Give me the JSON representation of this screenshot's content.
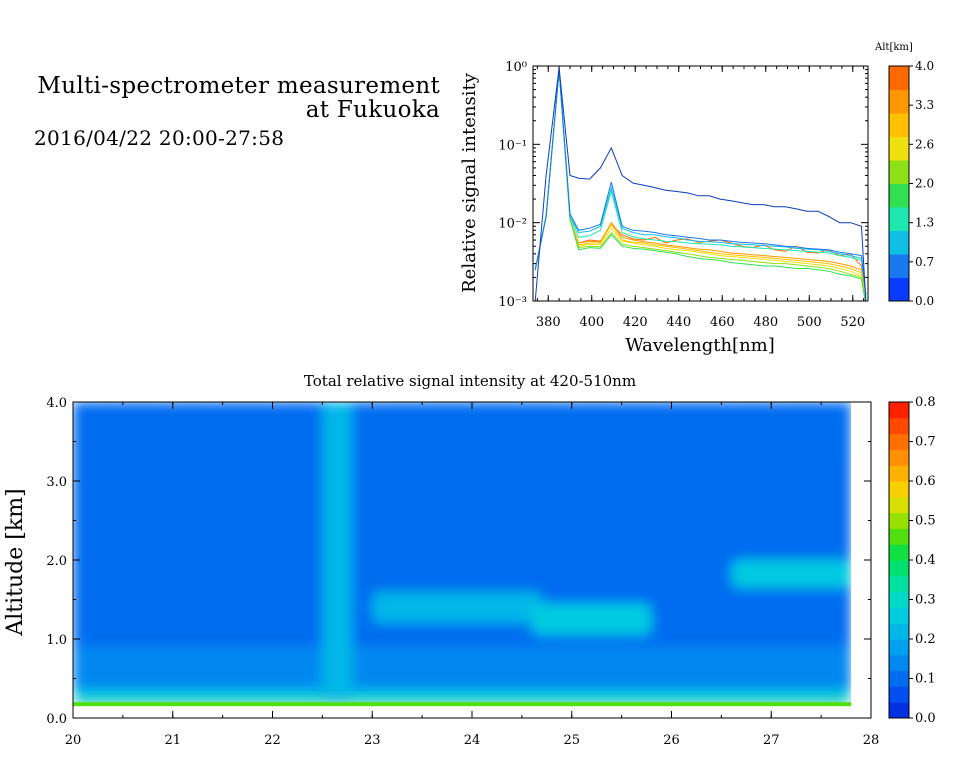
{
  "header": {
    "title_line1": "Multi-spectrometer measurement",
    "title_line2": "at Fukuoka",
    "date_range": "2016/04/22 20:00-27:58"
  },
  "chart_data": [
    {
      "type": "line",
      "xlabel": "Wavelength[nm]",
      "ylabel": "Relative signal intensity",
      "xlim": [
        373,
        527
      ],
      "ylim": [
        0.001,
        1
      ],
      "yscale": "log",
      "x_ticks": [
        380,
        400,
        420,
        440,
        460,
        480,
        500,
        520
      ],
      "y_ticks": [
        "10⁻³",
        "10⁻²",
        "10⁻¹",
        "10⁰"
      ],
      "legend": {
        "title": "Alt[km]",
        "labels": [
          "0.0",
          "0.7",
          "1.3",
          "2.0",
          "2.6",
          "3.3",
          "4.0"
        ],
        "colors": [
          "#0a3cff",
          "#1a78f0",
          "#10bfe6",
          "#1ce8b0",
          "#30e050",
          "#90e018",
          "#f0e010",
          "#ffc000",
          "#ff9800",
          "#ff6a00"
        ]
      },
      "x": [
        374,
        379,
        385,
        390,
        394,
        399,
        404,
        409,
        414,
        419,
        424,
        429,
        434,
        439,
        444,
        449,
        454,
        459,
        464,
        469,
        474,
        479,
        484,
        489,
        494,
        499,
        504,
        509,
        514,
        519,
        524,
        526
      ],
      "series": [
        {
          "color": "#0b3dbd",
          "values": [
            0.001,
            0.04,
            0.95,
            0.04,
            0.037,
            0.036,
            0.05,
            0.09,
            0.04,
            0.032,
            0.03,
            0.028,
            0.026,
            0.025,
            0.024,
            0.022,
            0.022,
            0.02,
            0.019,
            0.018,
            0.017,
            0.017,
            0.016,
            0.016,
            0.015,
            0.014,
            0.014,
            0.012,
            0.01,
            0.01,
            0.009,
            0.001
          ]
        },
        {
          "color": "#1a78f0",
          "values": [
            0.0025,
            0.012,
            0.9,
            0.013,
            0.008,
            0.0085,
            0.0095,
            0.033,
            0.009,
            0.008,
            0.0078,
            0.0075,
            0.007,
            0.0068,
            0.0065,
            0.0063,
            0.006,
            0.006,
            0.0058,
            0.0056,
            0.0055,
            0.0054,
            0.0052,
            0.005,
            0.0049,
            0.0047,
            0.0046,
            0.0045,
            0.0042,
            0.004,
            0.0038,
            0.0012
          ]
        },
        {
          "color": "#10bfe6",
          "values": [
            0.0025,
            0.012,
            0.9,
            0.012,
            0.0075,
            0.0078,
            0.009,
            0.028,
            0.0085,
            0.0075,
            0.007,
            0.007,
            0.0066,
            0.0064,
            0.006,
            0.0058,
            0.0057,
            0.0056,
            0.0054,
            0.0053,
            0.0052,
            0.0051,
            0.005,
            0.0049,
            0.0047,
            0.0046,
            0.0045,
            0.0043,
            0.004,
            0.0038,
            0.0035,
            0.0012
          ]
        },
        {
          "color": "#1ce8b0",
          "values": [
            0.0025,
            0.012,
            0.9,
            0.012,
            0.0065,
            0.0068,
            0.008,
            0.025,
            0.0075,
            0.0066,
            0.0062,
            0.006,
            0.0058,
            0.0057,
            0.0055,
            0.0054,
            0.0053,
            0.0052,
            0.005,
            0.0049,
            0.0048,
            0.0047,
            0.0046,
            0.0045,
            0.0044,
            0.0043,
            0.0042,
            0.0041,
            0.0038,
            0.0036,
            0.0033,
            0.0012
          ]
        },
        {
          "color": "#30e050",
          "values": [
            0.0025,
            0.012,
            0.9,
            0.011,
            0.0045,
            0.0048,
            0.0047,
            0.007,
            0.005,
            0.0047,
            0.0046,
            0.0044,
            0.0042,
            0.004,
            0.0037,
            0.0035,
            0.0034,
            0.0033,
            0.0031,
            0.003,
            0.0029,
            0.0028,
            0.0028,
            0.0027,
            0.0026,
            0.0026,
            0.0025,
            0.0024,
            0.0022,
            0.0021,
            0.0019,
            0.0009
          ]
        },
        {
          "color": "#90e018",
          "values": [
            0.0025,
            0.012,
            0.9,
            0.011,
            0.0048,
            0.005,
            0.0049,
            0.0075,
            0.0053,
            0.005,
            0.0048,
            0.0046,
            0.0044,
            0.0042,
            0.004,
            0.0038,
            0.0036,
            0.0035,
            0.0034,
            0.0033,
            0.0032,
            0.0031,
            0.003,
            0.003,
            0.0029,
            0.0028,
            0.0027,
            0.0026,
            0.0024,
            0.0022,
            0.002,
            0.0009
          ]
        },
        {
          "color": "#f0e010",
          "values": [
            0.0025,
            0.012,
            0.9,
            0.011,
            0.005,
            0.0053,
            0.0052,
            0.0085,
            0.0058,
            0.0055,
            0.0052,
            0.005,
            0.0047,
            0.0045,
            0.0044,
            0.0042,
            0.004,
            0.0038,
            0.0037,
            0.0036,
            0.0035,
            0.0034,
            0.0033,
            0.0032,
            0.0031,
            0.003,
            0.0029,
            0.0028,
            0.0026,
            0.0024,
            0.0021,
            0.001
          ]
        },
        {
          "color": "#ffc000",
          "values": [
            0.0025,
            0.012,
            0.9,
            0.011,
            0.0052,
            0.0055,
            0.0055,
            0.0095,
            0.006,
            0.0056,
            0.0055,
            0.0052,
            0.005,
            0.0048,
            0.0046,
            0.0044,
            0.0042,
            0.004,
            0.0039,
            0.0038,
            0.0037,
            0.0036,
            0.0035,
            0.0034,
            0.0033,
            0.0032,
            0.0031,
            0.003,
            0.0028,
            0.0026,
            0.0023,
            0.001
          ]
        },
        {
          "color": "#ff9800",
          "values": [
            0.0025,
            0.012,
            0.9,
            0.011,
            0.0055,
            0.0058,
            0.0057,
            0.01,
            0.0065,
            0.006,
            0.0057,
            0.0055,
            0.0052,
            0.005,
            0.0048,
            0.0046,
            0.0045,
            0.0043,
            0.0041,
            0.004,
            0.0039,
            0.0038,
            0.0037,
            0.0036,
            0.0035,
            0.0034,
            0.0033,
            0.0032,
            0.003,
            0.0028,
            0.0025,
            0.0011
          ]
        },
        {
          "color": "#ff6a00",
          "values": [
            0.0025,
            0.012,
            0.9,
            0.011,
            0.0055,
            0.006,
            0.0058,
            0.0095,
            0.007,
            0.0062,
            0.006,
            0.0065,
            0.0055,
            0.006,
            0.0062,
            0.0056,
            0.0058,
            0.006,
            0.0055,
            0.005,
            0.0048,
            0.0052,
            0.0045,
            0.0043,
            0.005,
            0.0042,
            0.0041,
            0.0045,
            0.0038,
            0.004,
            0.0028,
            0.0011
          ]
        }
      ]
    },
    {
      "type": "heatmap",
      "title": "Total relative signal intensity at 420-510nm",
      "ylabel": "Altitude [km]",
      "xlim": [
        20,
        28
      ],
      "ylim": [
        0,
        4
      ],
      "x_ticks": [
        "20",
        "21",
        "22",
        "23",
        "24",
        "25",
        "26",
        "27",
        "28"
      ],
      "y_ticks": [
        "0.0",
        "1.0",
        "2.0",
        "3.0",
        "4.0"
      ],
      "colorbar": {
        "min": 0,
        "max": 0.8,
        "tick_labels": [
          "0.0",
          "0.1",
          "0.2",
          "0.3",
          "0.4",
          "0.5",
          "0.6",
          "0.7",
          "0.8"
        ],
        "colors": [
          "#0030e0",
          "#0050f0",
          "#006cf0",
          "#0088f0",
          "#00a0f0",
          "#00b8e8",
          "#00cce0",
          "#00d8c8",
          "#00e0a0",
          "#00e070",
          "#10e040",
          "#50e010",
          "#98e000",
          "#d8e000",
          "#f8d000",
          "#ffb000",
          "#ff9000",
          "#ff7000",
          "#ff4800",
          "#ff2000"
        ]
      },
      "x_range": [
        20,
        27.8
      ],
      "altitude_range": [
        0.15,
        4.0
      ],
      "features": [
        {
          "name": "surface layer",
          "x": [
            20,
            27.8
          ],
          "alt": [
            0.15,
            0.2
          ],
          "value": 0.45
        },
        {
          "name": "low layer",
          "x": [
            20,
            27.8
          ],
          "alt": [
            0.2,
            0.35
          ],
          "value": 0.25
        },
        {
          "name": "aerosol layer A",
          "x": [
            23.0,
            24.7
          ],
          "alt": [
            1.2,
            1.6
          ],
          "value": 0.22
        },
        {
          "name": "aerosol layer B",
          "x": [
            24.6,
            25.8
          ],
          "alt": [
            1.05,
            1.45
          ],
          "value": 0.26
        },
        {
          "name": "aerosol layer C",
          "x": [
            26.6,
            27.8
          ],
          "alt": [
            1.65,
            2.0
          ],
          "value": 0.26
        },
        {
          "name": "column 22.6",
          "x": [
            22.5,
            22.8
          ],
          "alt": [
            0.2,
            4.0
          ],
          "value": 0.2
        }
      ]
    }
  ]
}
